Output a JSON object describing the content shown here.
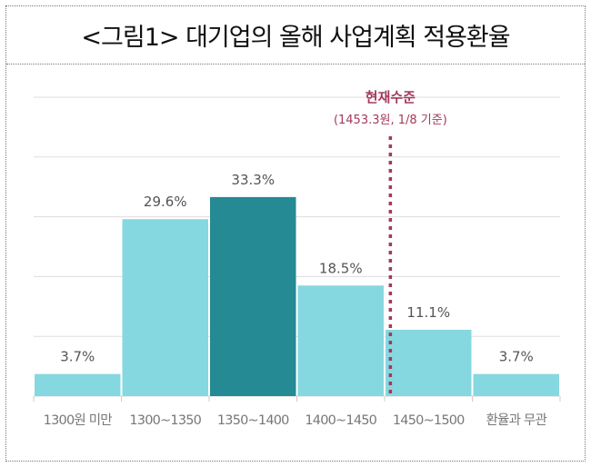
{
  "title": "<그림1> 대기업의 올해 사업계획 적용환율",
  "chart_data": {
    "type": "bar",
    "categories": [
      "1300원 미만",
      "1300~1350",
      "1350~1400",
      "1400~1450",
      "1450~1500",
      "환율과 무관"
    ],
    "values": [
      3.7,
      29.6,
      33.3,
      18.5,
      11.1,
      3.7
    ],
    "value_labels": [
      "3.7%",
      "29.6%",
      "33.3%",
      "18.5%",
      "11.1%",
      "3.7%"
    ],
    "highlight_index": 2,
    "ylim": [
      0,
      50
    ],
    "grid": true,
    "colors": {
      "bar": "#86d8e0",
      "highlight": "#258a93",
      "marker": "#a33a5a",
      "label": "#555555",
      "grid": "#dddddd"
    },
    "reference": {
      "label": "현재수준",
      "sublabel": "(1453.3원, 1/8 기준)",
      "value": 1453.3
    }
  }
}
